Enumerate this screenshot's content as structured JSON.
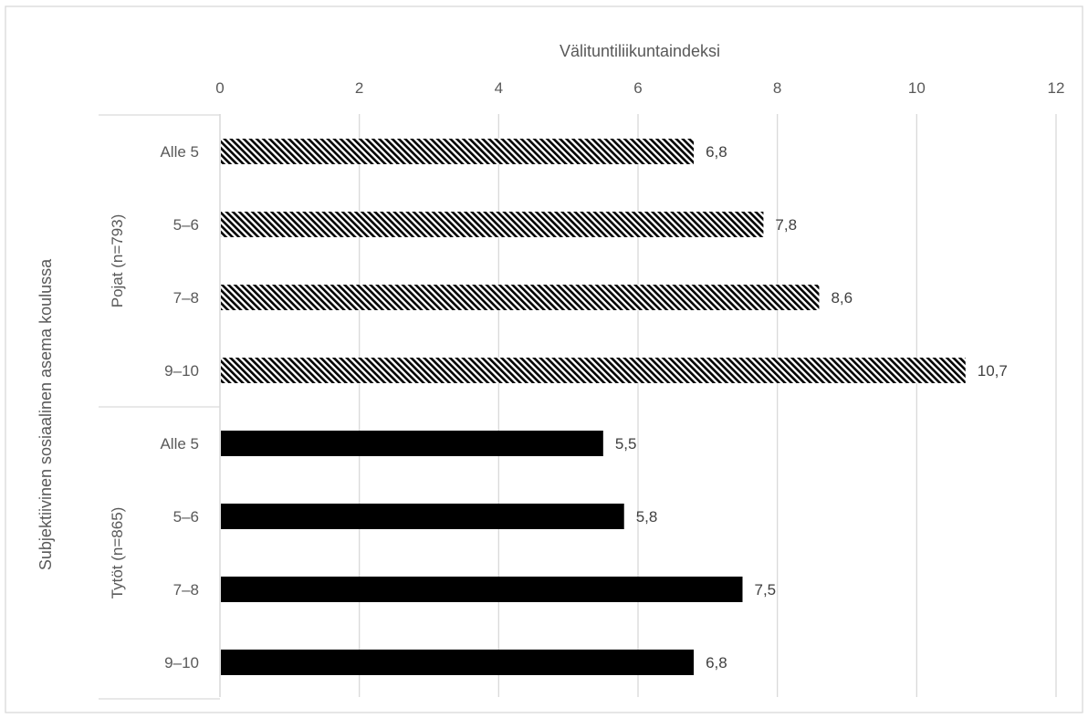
{
  "chart_data": {
    "type": "bar",
    "orientation": "horizontal",
    "title": "",
    "xlabel": "Välituntiliikuntaindeksi",
    "ylabel": "Subjektiivinen sosiaalinen asema koulussa",
    "xlim": [
      0,
      12
    ],
    "x_ticks": [
      "0",
      "2",
      "4",
      "6",
      "8",
      "10",
      "12"
    ],
    "x_axis_position": "top",
    "grid": true,
    "legend": "none",
    "groups": [
      {
        "label": "Pojat (n=793)",
        "pattern": "diagonal-hatch",
        "color": "#000000",
        "categories": [
          "Alle 5",
          "5–6",
          "7–8",
          "9–10"
        ],
        "values": [
          6.8,
          7.8,
          8.6,
          10.7
        ],
        "value_labels": [
          "6,8",
          "7,8",
          "8,6",
          "10,7"
        ]
      },
      {
        "label": "Tytöt (n=865)",
        "pattern": "solid",
        "color": "#000000",
        "categories": [
          "Alle 5",
          "5–6",
          "7–8",
          "9–10"
        ],
        "values": [
          5.5,
          5.8,
          7.5,
          6.8
        ],
        "value_labels": [
          "5,5",
          "5,8",
          "7,5",
          "6,8"
        ]
      }
    ]
  }
}
